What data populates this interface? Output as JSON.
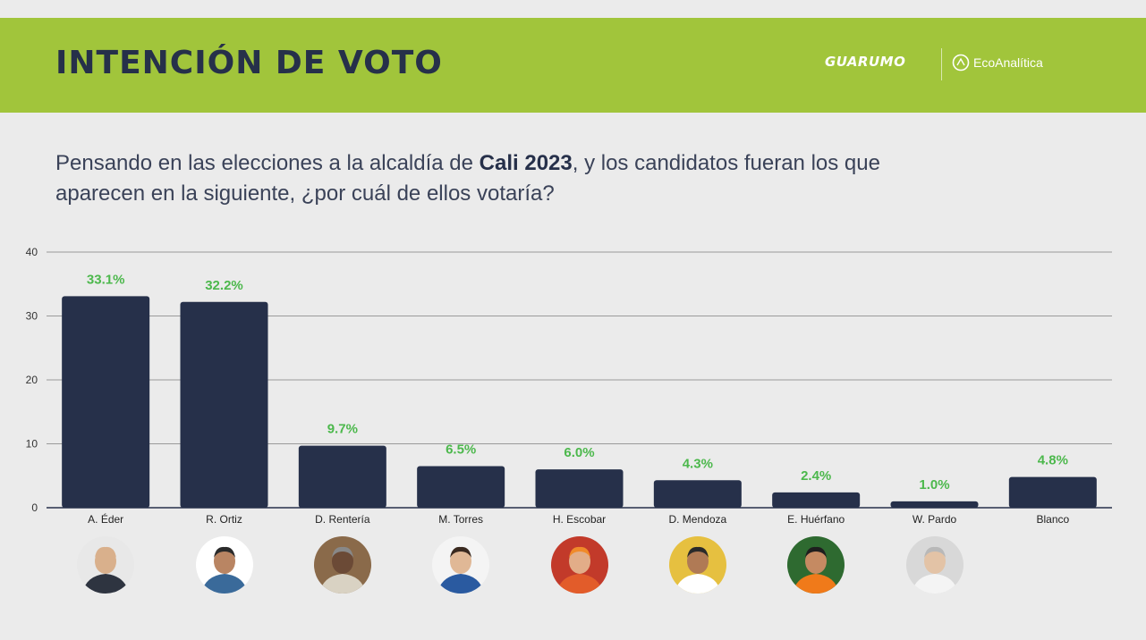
{
  "header": {
    "title": "INTENCIÓN DE VOTO",
    "logo_left": "GUARUMO",
    "logo_right": "EcoAnalítica"
  },
  "question": {
    "text_before": "Pensando en las elecciones a la alcaldía de ",
    "text_bold": "Cali 2023",
    "text_after": ", y los candidatos fueran los que aparecen en la siguiente, ¿por cuál de ellos votaría?"
  },
  "colors": {
    "banner": "#a1c53b",
    "bar": "#26304a",
    "label": "#4cb84c",
    "background": "#ebebeb"
  },
  "chart_data": {
    "type": "bar",
    "categories": [
      "A. Éder",
      "R. Ortiz",
      "D. Rentería",
      "M. Torres",
      "H. Escobar",
      "D. Mendoza",
      "E. Huérfano",
      "W. Pardo",
      "Blanco"
    ],
    "values": [
      33.1,
      32.2,
      9.7,
      6.5,
      6.0,
      4.3,
      2.4,
      1.0,
      4.8
    ],
    "data_labels": [
      "33.1%",
      "32.2%",
      "9.7%",
      "6.5%",
      "6.0%",
      "4.3%",
      "2.4%",
      "1.0%",
      "4.8%"
    ],
    "ylim": [
      0,
      40
    ],
    "yticks": [
      0,
      10,
      20,
      30,
      40
    ],
    "grid": true
  },
  "avatars": [
    {
      "name": "A. Éder",
      "skin": "#d9b08c",
      "shirt": "#2e3440",
      "bg": "#e8e8e8",
      "hair": "#d9b08c"
    },
    {
      "name": "R. Ortiz",
      "skin": "#b98563",
      "shirt": "#3a6a9a",
      "bg": "#ffffff",
      "hair": "#2a2a2a"
    },
    {
      "name": "D. Rentería",
      "skin": "#6b4a36",
      "shirt": "#d9d2c3",
      "bg": "#8a6a4a",
      "hair": "#888888"
    },
    {
      "name": "M. Torres",
      "skin": "#e0b896",
      "shirt": "#2a5aa0",
      "bg": "#f4f4f4",
      "hair": "#3a2a20"
    },
    {
      "name": "H. Escobar",
      "skin": "#e2ad88",
      "shirt": "#e25c2a",
      "bg": "#c23a2a",
      "hair": "#f08a2a"
    },
    {
      "name": "D. Mendoza",
      "skin": "#b07a55",
      "shirt": "#ffffff",
      "bg": "#e6c040",
      "hair": "#2a2a2a"
    },
    {
      "name": "E. Huérfano",
      "skin": "#c58a62",
      "shirt": "#f07a1a",
      "bg": "#2e6a30",
      "hair": "#1e1e1e"
    },
    {
      "name": "W. Pardo",
      "skin": "#e3c3a6",
      "shirt": "#f4f4f4",
      "bg": "#d8d8d8",
      "hair": "#b8b8b8"
    }
  ]
}
